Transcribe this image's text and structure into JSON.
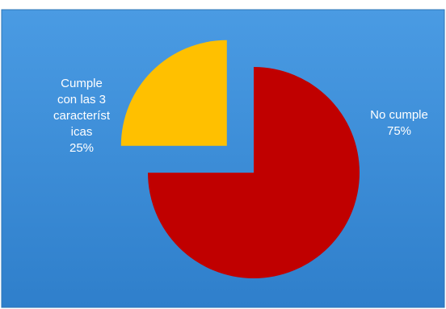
{
  "chart_data": {
    "type": "pie",
    "title": "",
    "slices": [
      {
        "label": "Cumple con las 3 característ icas",
        "label_lines": [
          "Cumple",
          "con las 3",
          "característ",
          "icas",
          "25%"
        ],
        "value": 25,
        "color": "#FFC000",
        "exploded": true
      },
      {
        "label": "No cumple",
        "label_lines": [
          "No cumple",
          "75%"
        ],
        "value": 75,
        "color": "#C00000",
        "exploded": false
      }
    ],
    "background_color": "#3F8FD8",
    "legend": "none"
  }
}
